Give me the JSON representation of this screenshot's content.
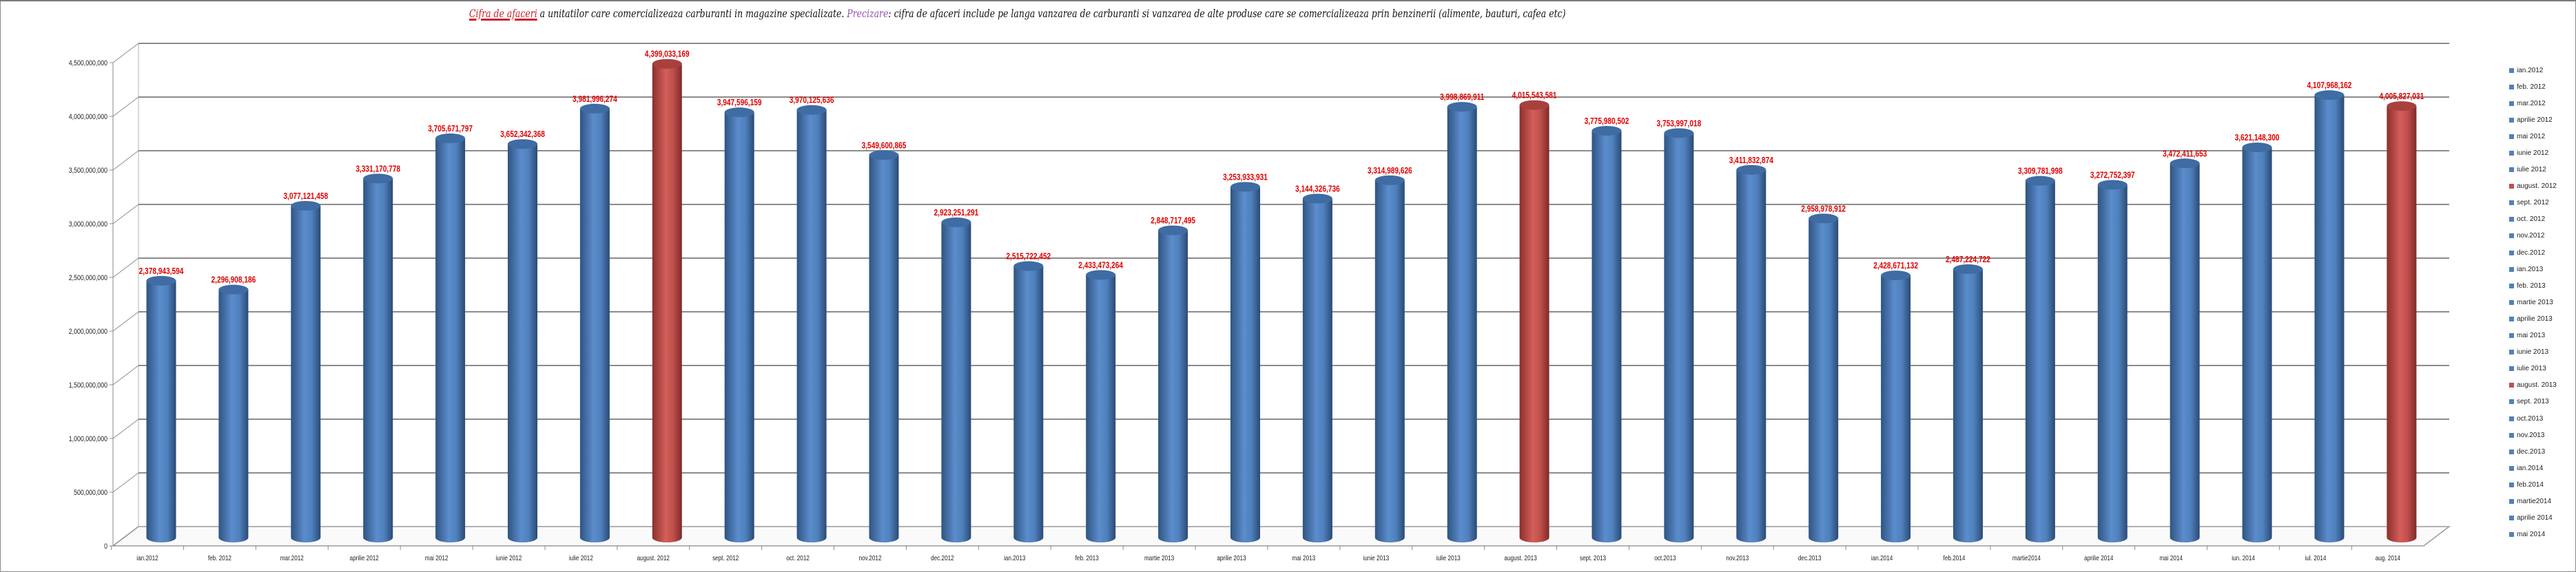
{
  "title": {
    "lead": "Cifra de afaceri",
    "part1": " a unitatilor care comercializeaza carburanti in magazine specializate. ",
    "precizare": "Precizare",
    "part2": ": cifra de afaceri include pe langa vanzarea de carburanti  si vanzarea de alte produse care se comercializeaza prin benzinerii (alimente, bauturi, cafea etc)"
  },
  "colors": {
    "normal": "#4f81bd",
    "highlight": "#c0504d",
    "label": "#e00000"
  },
  "chart_data": {
    "type": "bar",
    "title": "Cifra de afaceri a unitatilor care comercializeaza carburanti in magazine specializate",
    "xlabel": "",
    "ylabel": "",
    "ylim": [
      0,
      4500000000
    ],
    "yticks": [
      0,
      500000000,
      1000000000,
      1500000000,
      2000000000,
      2500000000,
      3000000000,
      3500000000,
      4000000000,
      4500000000
    ],
    "ytick_labels": [
      "0",
      "500,000,000",
      "1,000,000,000",
      "1,500,000,000",
      "2,000,000,000",
      "2,500,000,000",
      "3,000,000,000",
      "3,500,000,000",
      "4,000,000,000",
      "4,500,000,000"
    ],
    "grid": true,
    "legend_position": "right",
    "categories": [
      "ian.2012",
      "feb. 2012",
      "mar.2012",
      "aprilie 2012",
      "mai 2012",
      "iunie 2012",
      "iulie 2012",
      "august. 2012",
      "sept. 2012",
      "oct. 2012",
      "nov.2012",
      "dec.2012",
      "ian.2013",
      "feb. 2013",
      "martie 2013",
      "aprilie 2013",
      "mai 2013",
      "iunie 2013",
      "iulie 2013",
      "august. 2013",
      "sept. 2013",
      "oct.2013",
      "nov.2013",
      "dec.2013",
      "ian.2014",
      "feb.2014",
      "martie2014",
      "aprilie 2014",
      "mai 2014",
      "iun. 2014",
      "iul. 2014",
      "aug. 2014"
    ],
    "legend": [
      "ian.2012",
      "feb. 2012",
      "mar.2012",
      "aprilie 2012",
      "mai 2012",
      "iunie 2012",
      "iulie 2012",
      "august. 2012",
      "sept. 2012",
      "oct. 2012",
      "nov.2012",
      "dec.2012",
      "ian.2013",
      "feb. 2013",
      "martie 2013",
      "aprilie 2013",
      "mai 2013",
      "iunie 2013",
      "iulie 2013",
      "august. 2013",
      "sept. 2013",
      "oct.2013",
      "nov.2013",
      "dec.2013",
      "ian.2014",
      "feb.2014",
      "martie2014",
      "aprilie 2014",
      "mai 2014"
    ],
    "legend_highlight": [
      7,
      19
    ],
    "values": [
      2378943594,
      2296908186,
      3077121458,
      3331170778,
      3705671797,
      3652342368,
      3981996274,
      4399033169,
      3947596159,
      3970125636,
      3549600865,
      2923251291,
      2515722452,
      2433473264,
      2848717495,
      3253933931,
      3144326736,
      3314989626,
      3998869911,
      4015543581,
      3775980502,
      3753997018,
      3411832874,
      2958978912,
      2428671132,
      2487224722,
      3309781998,
      3272752397,
      3472411653,
      3621148300,
      4107968162,
      4005827031
    ],
    "value_labels": [
      "2,378,943,594",
      "2,296,908,186",
      "3,077,121,458",
      "3,331,170,778",
      "3,705,671,797",
      "3,652,342,368",
      "3,981,996,274",
      "4,399,033,169",
      "3,947,596,159",
      "3,970,125,636",
      "3,549,600,865",
      "2,923,251,291",
      "2,515,722,452",
      "2,433,473,264",
      "2,848,717,495",
      "3,253,933,931",
      "3,144,326,736",
      "3,314,989,626",
      "3,998,869,911",
      "4,015,543,581",
      "3,775,980,502",
      "3,753,997,018",
      "3,411,832,874",
      "2,958,978,912",
      "2,428,671,132",
      "2,487,224,722",
      "3,309,781,998",
      "3,272,752,397",
      "3,472,411,653",
      "3,621,148,300",
      "4,107,968,162",
      "4,005,827,031"
    ],
    "highlight_indices": [
      7,
      19,
      31
    ]
  }
}
